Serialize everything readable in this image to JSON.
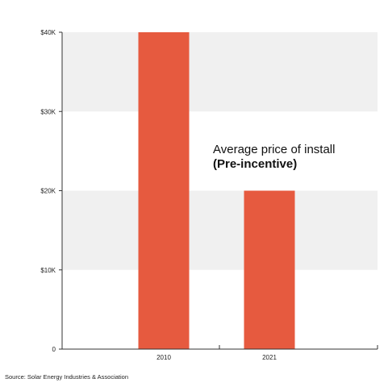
{
  "chart_data": {
    "type": "bar",
    "categories": [
      "2010",
      "2021"
    ],
    "values": [
      40000,
      20000
    ],
    "ylim": [
      0,
      40000
    ],
    "yticks": [
      {
        "value": 0,
        "label": "0"
      },
      {
        "value": 10000,
        "label": "$10K"
      },
      {
        "value": 20000,
        "label": "$20K"
      },
      {
        "value": 30000,
        "label": "$30K"
      },
      {
        "value": 40000,
        "label": "$40K"
      }
    ],
    "annotation": [
      "Average price of install",
      "(Pre-incentive)"
    ],
    "source": "Source: Solar Energy Industries & Association",
    "grid": "alternating horizontal bands",
    "colors": {
      "bar": "#e65a3f",
      "band": "#f0f0f0",
      "axis": "#333333"
    }
  }
}
